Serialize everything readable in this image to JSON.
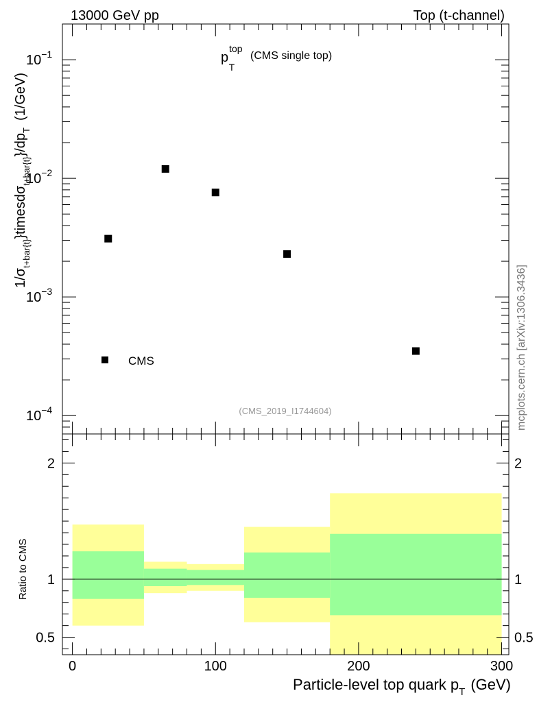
{
  "header": {
    "left": "13000 GeV pp",
    "right": "Top (t-channel)"
  },
  "watermark": "mcplots.cern.ch [arXiv:1306.3436]",
  "chart_data": [
    {
      "type": "scatter",
      "panel": "main",
      "title_main": "p",
      "title_sub": "T",
      "title_sup": "top",
      "title_note": "(CMS single top)",
      "ylabel_parts": {
        "a": "1/σ",
        "a_sub": "t+bar{t}",
        "b": "}timesdσ",
        "b_sub": "t+bar{t}",
        "c": "}/dp",
        "c_sub": "T",
        "d": "(1/GeV)"
      },
      "yscale": "log",
      "ylim": [
        7e-05,
        0.2
      ],
      "xlim": [
        -7,
        305
      ],
      "ytick_labels": [
        {
          "base": "10",
          "exp": "−1",
          "value": 0.1
        },
        {
          "base": "10",
          "exp": "−2",
          "value": 0.01
        },
        {
          "base": "10",
          "exp": "−3",
          "value": 0.001
        },
        {
          "base": "10",
          "exp": "−4",
          "value": 0.0001
        }
      ],
      "legend": {
        "label": "CMS",
        "position": "bottom-left"
      },
      "annotation": "(CMS_2019_I1744604)",
      "series": [
        {
          "name": "CMS",
          "x": [
            25,
            65,
            100,
            150,
            240
          ],
          "y": [
            0.0031,
            0.012,
            0.0076,
            0.0023,
            0.00035
          ]
        }
      ]
    },
    {
      "type": "area",
      "panel": "ratio",
      "ylabel": "Ratio to CMS",
      "xlabel_main": "Particle-level top quark p",
      "xlabel_sub": "T",
      "xlabel_unit": "(GeV)",
      "xlim": [
        -7,
        305
      ],
      "ylim": [
        0.35,
        2.25
      ],
      "xtick_labels": [
        "0",
        "100",
        "200",
        "300"
      ],
      "ytick_labels": [
        "0.5",
        "1",
        "2"
      ],
      "reference_line": 1.0,
      "bins": [
        {
          "lo": 0,
          "hi": 50,
          "inner": [
            0.83,
            1.24
          ],
          "outer": [
            0.6,
            1.47
          ]
        },
        {
          "lo": 50,
          "hi": 80,
          "inner": [
            0.94,
            1.09
          ],
          "outer": [
            0.88,
            1.15
          ]
        },
        {
          "lo": 80,
          "hi": 120,
          "inner": [
            0.95,
            1.08
          ],
          "outer": [
            0.9,
            1.13
          ]
        },
        {
          "lo": 120,
          "hi": 180,
          "inner": [
            0.84,
            1.23
          ],
          "outer": [
            0.63,
            1.45
          ]
        },
        {
          "lo": 180,
          "hi": 300,
          "inner": [
            0.69,
            1.39
          ],
          "outer": [
            0.35,
            1.74
          ]
        }
      ],
      "colors": {
        "inner": "#99ff99",
        "outer": "#ffff99"
      }
    }
  ]
}
